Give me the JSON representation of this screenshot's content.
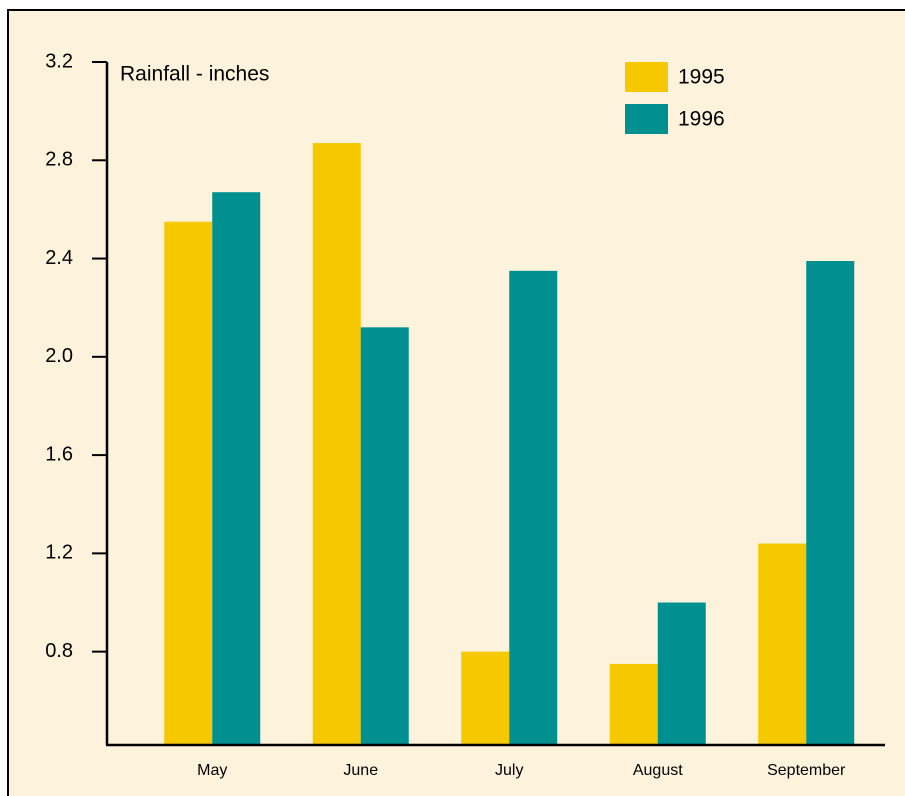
{
  "chart_data": {
    "type": "bar",
    "y_label": "Rainfall - inches",
    "categories": [
      "May",
      "June",
      "July",
      "August",
      "September"
    ],
    "series": [
      {
        "name": "1995",
        "color": "#f5c800",
        "values": [
          2.55,
          2.87,
          0.8,
          0.75,
          1.24
        ]
      },
      {
        "name": "1996",
        "color": "#009090",
        "values": [
          2.67,
          2.12,
          2.35,
          1.0,
          2.39
        ]
      }
    ],
    "ylim": [
      0.42,
      3.2
    ],
    "yticks": [
      0.8,
      1.2,
      1.6,
      {
        "value": 2,
        "label": "2.0"
      },
      2.4,
      2.8,
      3.2
    ],
    "grid": false,
    "legend": "top-right"
  }
}
